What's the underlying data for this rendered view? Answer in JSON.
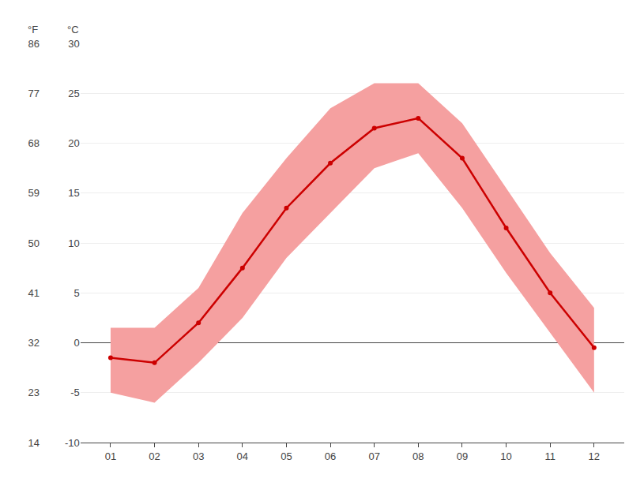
{
  "chart_data": {
    "type": "line",
    "categories": [
      "01",
      "02",
      "03",
      "04",
      "05",
      "06",
      "07",
      "08",
      "09",
      "10",
      "11",
      "12"
    ],
    "series": [
      {
        "type": "band",
        "color": "#f5a0a0",
        "low": [
          -5.0,
          -6.0,
          -2.0,
          2.5,
          8.5,
          13.0,
          17.5,
          19.0,
          13.5,
          7.0,
          1.0,
          -5.0
        ],
        "high": [
          1.5,
          1.5,
          5.5,
          13.0,
          18.5,
          23.5,
          26.0,
          26.0,
          22.0,
          15.5,
          9.0,
          3.5
        ]
      },
      {
        "type": "line",
        "color": "#cc0000",
        "marker": "circle",
        "values": [
          -1.5,
          -2.0,
          2.0,
          7.5,
          13.5,
          18.0,
          21.5,
          22.5,
          18.5,
          11.5,
          5.0,
          -0.5
        ]
      }
    ],
    "ylabel": "°C",
    "ylim": [
      -10,
      30
    ],
    "yticks": [
      -10,
      -5,
      0,
      5,
      10,
      15,
      20,
      25,
      30
    ],
    "y2label": "°F",
    "y2lim": [
      14,
      86
    ],
    "y2ticks": [
      14,
      23,
      32,
      41,
      50,
      59,
      68,
      77,
      86
    ],
    "grid": true
  }
}
